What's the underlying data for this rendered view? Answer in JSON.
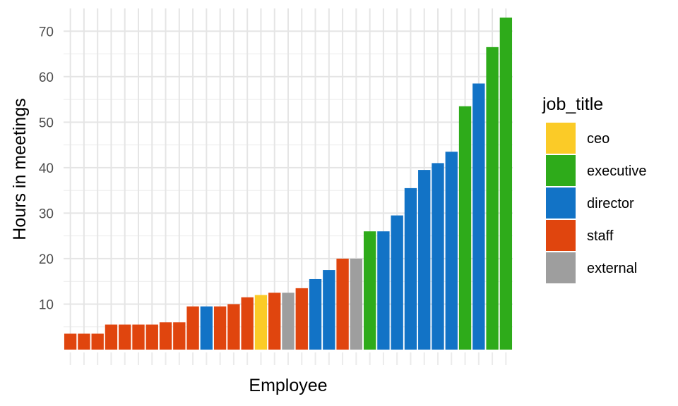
{
  "chart_data": {
    "type": "bar",
    "title": "",
    "xlabel": "Employee",
    "ylabel": "Hours in meetings",
    "ylim": [
      0,
      75
    ],
    "y_ticks": [
      10,
      20,
      30,
      40,
      50,
      60,
      70
    ],
    "grid": true,
    "legend_title": "job_title",
    "legend_position": "right",
    "legend": [
      {
        "name": "ceo",
        "color": "#FBCB27"
      },
      {
        "name": "executive",
        "color": "#2EAB1A"
      },
      {
        "name": "director",
        "color": "#1273C6"
      },
      {
        "name": "staff",
        "color": "#E0450E"
      },
      {
        "name": "external",
        "color": "#9E9E9E"
      }
    ],
    "bars": [
      {
        "value": 3.5,
        "job_title": "staff"
      },
      {
        "value": 3.5,
        "job_title": "staff"
      },
      {
        "value": 3.5,
        "job_title": "staff"
      },
      {
        "value": 5.5,
        "job_title": "staff"
      },
      {
        "value": 5.5,
        "job_title": "staff"
      },
      {
        "value": 5.5,
        "job_title": "staff"
      },
      {
        "value": 5.5,
        "job_title": "staff"
      },
      {
        "value": 6.0,
        "job_title": "staff"
      },
      {
        "value": 6.0,
        "job_title": "staff"
      },
      {
        "value": 9.5,
        "job_title": "staff"
      },
      {
        "value": 9.5,
        "job_title": "director"
      },
      {
        "value": 9.5,
        "job_title": "staff"
      },
      {
        "value": 10.0,
        "job_title": "staff"
      },
      {
        "value": 11.5,
        "job_title": "staff"
      },
      {
        "value": 12.0,
        "job_title": "ceo"
      },
      {
        "value": 12.5,
        "job_title": "staff"
      },
      {
        "value": 12.5,
        "job_title": "external"
      },
      {
        "value": 13.5,
        "job_title": "staff"
      },
      {
        "value": 15.5,
        "job_title": "director"
      },
      {
        "value": 17.5,
        "job_title": "director"
      },
      {
        "value": 20.0,
        "job_title": "staff"
      },
      {
        "value": 20.0,
        "job_title": "external"
      },
      {
        "value": 26.0,
        "job_title": "executive"
      },
      {
        "value": 26.0,
        "job_title": "director"
      },
      {
        "value": 29.5,
        "job_title": "director"
      },
      {
        "value": 35.5,
        "job_title": "director"
      },
      {
        "value": 39.5,
        "job_title": "director"
      },
      {
        "value": 41.0,
        "job_title": "director"
      },
      {
        "value": 43.5,
        "job_title": "director"
      },
      {
        "value": 53.5,
        "job_title": "executive"
      },
      {
        "value": 58.5,
        "job_title": "director"
      },
      {
        "value": 66.5,
        "job_title": "executive"
      },
      {
        "value": 73.0,
        "job_title": "executive"
      }
    ]
  }
}
